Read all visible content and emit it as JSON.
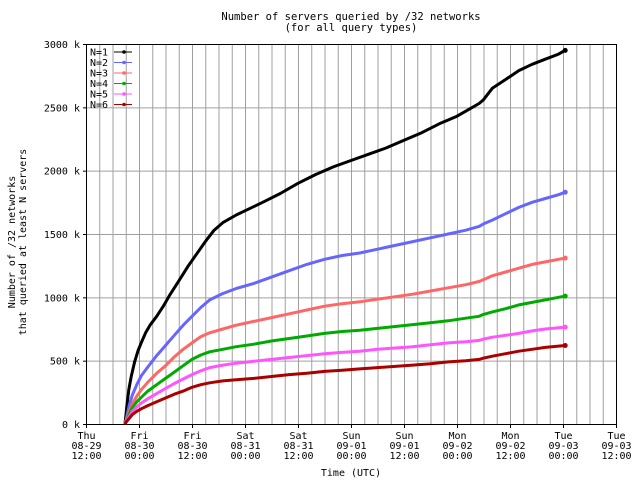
{
  "chart_data": {
    "type": "line",
    "title": "Number of servers queried by /32 networks",
    "subtitle": "(for all query types)",
    "xlabel": "Time (UTC)",
    "ylabel_line1": "Number of /32 networks",
    "ylabel_line2": "that queried at least N servers",
    "ylim": [
      0,
      3000
    ],
    "grid": true,
    "legend_position": "top-left",
    "y_ticks": [
      {
        "value": 0,
        "label": "0 k"
      },
      {
        "value": 500,
        "label": "500 k"
      },
      {
        "value": 1000,
        "label": "1000 k"
      },
      {
        "value": 1500,
        "label": "1500 k"
      },
      {
        "value": 2000,
        "label": "2000 k"
      },
      {
        "value": 2500,
        "label": "2500 k"
      },
      {
        "value": 3000,
        "label": "3000 k"
      }
    ],
    "x_ticks": [
      {
        "value": 0,
        "day": "Thu",
        "date": "08-29",
        "time": "12:00"
      },
      {
        "value": 12,
        "day": "Fri",
        "date": "08-30",
        "time": "00:00"
      },
      {
        "value": 24,
        "day": "Fri",
        "date": "08-30",
        "time": "12:00"
      },
      {
        "value": 36,
        "day": "Sat",
        "date": "08-31",
        "time": "00:00"
      },
      {
        "value": 48,
        "day": "Sat",
        "date": "08-31",
        "time": "12:00"
      },
      {
        "value": 60,
        "day": "Sun",
        "date": "09-01",
        "time": "00:00"
      },
      {
        "value": 72,
        "day": "Sun",
        "date": "09-01",
        "time": "12:00"
      },
      {
        "value": 84,
        "day": "Mon",
        "date": "09-02",
        "time": "00:00"
      },
      {
        "value": 96,
        "day": "Mon",
        "date": "09-02",
        "time": "12:00"
      },
      {
        "value": 108,
        "day": "Tue",
        "date": "09-03",
        "time": "00:00"
      },
      {
        "value": 120,
        "day": "Tue",
        "date": "09-03",
        "time": "12:00"
      }
    ],
    "x_range": [
      0,
      120
    ],
    "x_unit": "hours after Thu 08-29 12:00",
    "series": [
      {
        "name": "N=1",
        "color": "#000000",
        "points": [
          [
            8.8,
            0
          ],
          [
            9,
            60
          ],
          [
            9.3,
            160
          ],
          [
            9.7,
            270
          ],
          [
            10.2,
            370
          ],
          [
            11,
            490
          ],
          [
            11.8,
            580
          ],
          [
            12.5,
            640
          ],
          [
            13.5,
            720
          ],
          [
            14.5,
            780
          ],
          [
            16,
            850
          ],
          [
            17.5,
            930
          ],
          [
            19,
            1020
          ],
          [
            21,
            1130
          ],
          [
            23,
            1240
          ],
          [
            25,
            1340
          ],
          [
            27,
            1440
          ],
          [
            29,
            1530
          ],
          [
            31,
            1590
          ],
          [
            34,
            1650
          ],
          [
            37,
            1700
          ],
          [
            40,
            1750
          ],
          [
            44,
            1820
          ],
          [
            48,
            1900
          ],
          [
            52,
            1970
          ],
          [
            56,
            2030
          ],
          [
            60,
            2080
          ],
          [
            64,
            2130
          ],
          [
            68,
            2180
          ],
          [
            72,
            2240
          ],
          [
            76,
            2300
          ],
          [
            80,
            2370
          ],
          [
            84,
            2430
          ],
          [
            87,
            2490
          ],
          [
            89,
            2530
          ],
          [
            90,
            2560
          ],
          [
            92,
            2650
          ],
          [
            95,
            2720
          ],
          [
            98,
            2790
          ],
          [
            101,
            2840
          ],
          [
            104,
            2880
          ],
          [
            107,
            2920
          ],
          [
            108.5,
            2950
          ]
        ]
      },
      {
        "name": "N=2",
        "color": "#6666ff",
        "points": [
          [
            8.8,
            0
          ],
          [
            9.2,
            50
          ],
          [
            9.8,
            150
          ],
          [
            10.5,
            230
          ],
          [
            11.5,
            310
          ],
          [
            12.5,
            380
          ],
          [
            14,
            450
          ],
          [
            16,
            540
          ],
          [
            18,
            620
          ],
          [
            20,
            700
          ],
          [
            22,
            780
          ],
          [
            24,
            850
          ],
          [
            26,
            920
          ],
          [
            28,
            980
          ],
          [
            31,
            1030
          ],
          [
            34,
            1070
          ],
          [
            38,
            1110
          ],
          [
            42,
            1160
          ],
          [
            46,
            1210
          ],
          [
            50,
            1260
          ],
          [
            54,
            1300
          ],
          [
            58,
            1330
          ],
          [
            62,
            1350
          ],
          [
            66,
            1380
          ],
          [
            70,
            1410
          ],
          [
            74,
            1440
          ],
          [
            78,
            1470
          ],
          [
            82,
            1500
          ],
          [
            86,
            1530
          ],
          [
            89,
            1560
          ],
          [
            90,
            1580
          ],
          [
            92,
            1610
          ],
          [
            95,
            1660
          ],
          [
            98,
            1710
          ],
          [
            101,
            1750
          ],
          [
            104,
            1780
          ],
          [
            107,
            1810
          ],
          [
            108.5,
            1830
          ]
        ]
      },
      {
        "name": "N=3",
        "color": "#ff6666",
        "points": [
          [
            8.8,
            0
          ],
          [
            9.2,
            40
          ],
          [
            9.8,
            100
          ],
          [
            10.5,
            160
          ],
          [
            11.5,
            220
          ],
          [
            12.5,
            270
          ],
          [
            14,
            330
          ],
          [
            16,
            400
          ],
          [
            18,
            460
          ],
          [
            20,
            530
          ],
          [
            22,
            590
          ],
          [
            24,
            640
          ],
          [
            26,
            690
          ],
          [
            28,
            720
          ],
          [
            31,
            750
          ],
          [
            34,
            780
          ],
          [
            38,
            810
          ],
          [
            42,
            840
          ],
          [
            46,
            870
          ],
          [
            50,
            900
          ],
          [
            54,
            930
          ],
          [
            58,
            950
          ],
          [
            62,
            965
          ],
          [
            66,
            985
          ],
          [
            70,
            1005
          ],
          [
            74,
            1025
          ],
          [
            78,
            1050
          ],
          [
            82,
            1075
          ],
          [
            86,
            1100
          ],
          [
            89,
            1125
          ],
          [
            90,
            1140
          ],
          [
            92,
            1170
          ],
          [
            95,
            1200
          ],
          [
            98,
            1230
          ],
          [
            101,
            1260
          ],
          [
            104,
            1280
          ],
          [
            107,
            1300
          ],
          [
            108.5,
            1310
          ]
        ]
      },
      {
        "name": "N=4",
        "color": "#00aa00",
        "points": [
          [
            8.8,
            0
          ],
          [
            9.2,
            30
          ],
          [
            9.8,
            80
          ],
          [
            10.5,
            130
          ],
          [
            11.5,
            175
          ],
          [
            12.5,
            210
          ],
          [
            14,
            260
          ],
          [
            16,
            310
          ],
          [
            18,
            360
          ],
          [
            20,
            410
          ],
          [
            22,
            460
          ],
          [
            24,
            510
          ],
          [
            26,
            545
          ],
          [
            28,
            570
          ],
          [
            31,
            590
          ],
          [
            34,
            610
          ],
          [
            38,
            630
          ],
          [
            42,
            655
          ],
          [
            46,
            675
          ],
          [
            50,
            695
          ],
          [
            54,
            715
          ],
          [
            58,
            730
          ],
          [
            62,
            740
          ],
          [
            66,
            755
          ],
          [
            70,
            770
          ],
          [
            74,
            785
          ],
          [
            78,
            800
          ],
          [
            82,
            815
          ],
          [
            86,
            835
          ],
          [
            89,
            850
          ],
          [
            90,
            865
          ],
          [
            92,
            885
          ],
          [
            95,
            910
          ],
          [
            98,
            940
          ],
          [
            101,
            960
          ],
          [
            104,
            980
          ],
          [
            107,
            1000
          ],
          [
            108.5,
            1010
          ]
        ]
      },
      {
        "name": "N=5",
        "color": "#ff55ff",
        "points": [
          [
            8.8,
            0
          ],
          [
            9.2,
            25
          ],
          [
            9.8,
            60
          ],
          [
            10.5,
            100
          ],
          [
            11.5,
            135
          ],
          [
            12.5,
            165
          ],
          [
            14,
            200
          ],
          [
            16,
            240
          ],
          [
            18,
            280
          ],
          [
            20,
            320
          ],
          [
            22,
            355
          ],
          [
            24,
            390
          ],
          [
            26,
            420
          ],
          [
            28,
            445
          ],
          [
            31,
            465
          ],
          [
            34,
            480
          ],
          [
            38,
            495
          ],
          [
            42,
            510
          ],
          [
            46,
            525
          ],
          [
            50,
            540
          ],
          [
            54,
            555
          ],
          [
            58,
            565
          ],
          [
            62,
            575
          ],
          [
            66,
            590
          ],
          [
            70,
            600
          ],
          [
            74,
            610
          ],
          [
            78,
            625
          ],
          [
            82,
            640
          ],
          [
            86,
            650
          ],
          [
            89,
            660
          ],
          [
            90,
            670
          ],
          [
            92,
            685
          ],
          [
            95,
            700
          ],
          [
            98,
            715
          ],
          [
            101,
            735
          ],
          [
            104,
            750
          ],
          [
            107,
            760
          ],
          [
            108.5,
            765
          ]
        ]
      },
      {
        "name": "N=6",
        "color": "#aa0000",
        "points": [
          [
            8.8,
            0
          ],
          [
            9.2,
            20
          ],
          [
            9.8,
            45
          ],
          [
            10.5,
            75
          ],
          [
            11.5,
            100
          ],
          [
            12.5,
            120
          ],
          [
            14,
            145
          ],
          [
            16,
            175
          ],
          [
            18,
            205
          ],
          [
            20,
            235
          ],
          [
            22,
            260
          ],
          [
            24,
            290
          ],
          [
            26,
            310
          ],
          [
            28,
            325
          ],
          [
            31,
            340
          ],
          [
            34,
            350
          ],
          [
            38,
            360
          ],
          [
            42,
            375
          ],
          [
            46,
            390
          ],
          [
            50,
            400
          ],
          [
            54,
            415
          ],
          [
            58,
            425
          ],
          [
            62,
            435
          ],
          [
            66,
            445
          ],
          [
            70,
            455
          ],
          [
            74,
            465
          ],
          [
            78,
            475
          ],
          [
            82,
            490
          ],
          [
            86,
            500
          ],
          [
            89,
            510
          ],
          [
            90,
            520
          ],
          [
            92,
            535
          ],
          [
            95,
            555
          ],
          [
            98,
            575
          ],
          [
            101,
            590
          ],
          [
            104,
            605
          ],
          [
            107,
            615
          ],
          [
            108.5,
            620
          ]
        ]
      }
    ]
  }
}
